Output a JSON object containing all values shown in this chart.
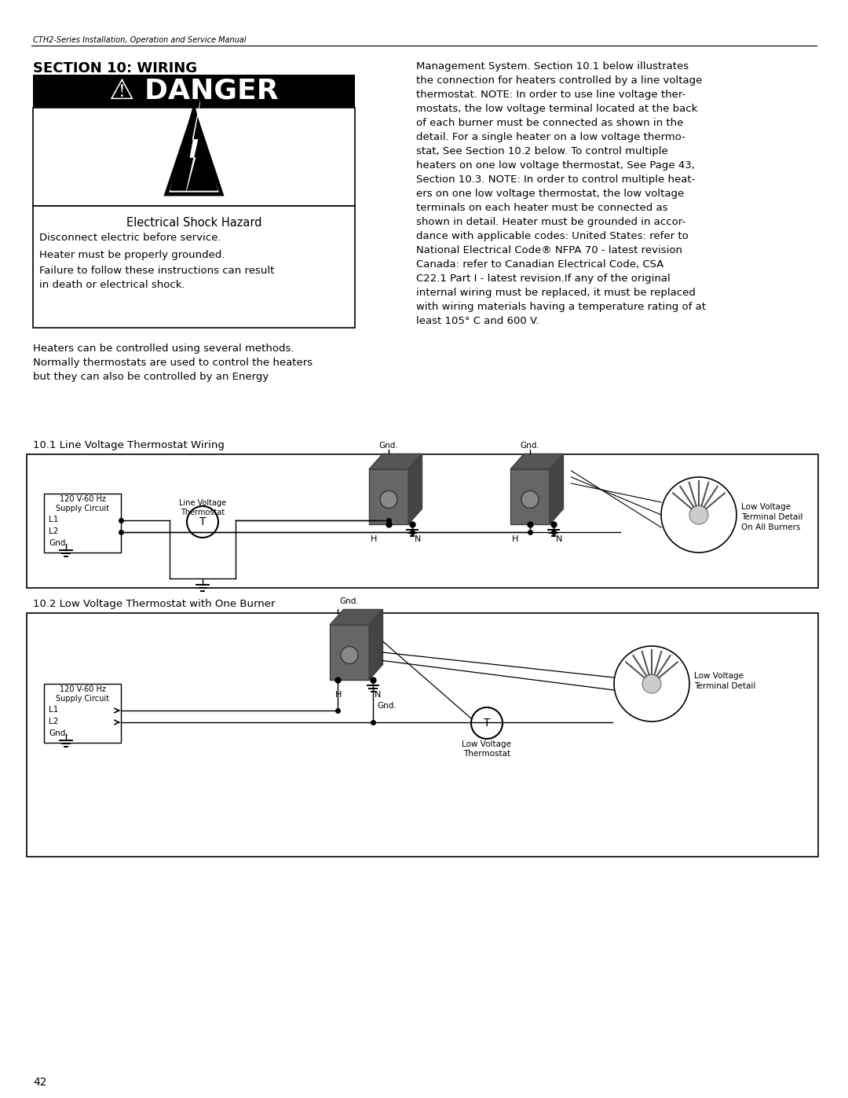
{
  "page_title": "CTH2-Series Installation, Operation and Service Manual",
  "section_title": "SECTION 10: WIRING",
  "danger_title": "⚠ DANGER",
  "danger_subtitle": "Electrical Shock Hazard",
  "danger_lines": [
    "Disconnect electric before service.",
    "Heater must be properly grounded.",
    "Failure to follow these instructions can result\nin death or electrical shock."
  ],
  "body_text_left": "Heaters can be controlled using several methods.\nNormally thermostats are used to control the heaters\nbut they can also be controlled by an Energy",
  "body_text_right": "Management System. Section 10.1 below illustrates\nthe connection for heaters controlled by a line voltage\nthermostat. NOTE: In order to use line voltage ther-\nmostats, the low voltage terminal located at the back\nof each burner must be connected as shown in the\ndetail. For a single heater on a low voltage thermo-\nstat, See Section 10.2 below. To control multiple\nheaters on one low voltage thermostat, See Page 43,\nSection 10.3. NOTE: In order to control multiple heat-\ners on one low voltage thermostat, the low voltage\nterminals on each heater must be connected as\nshown in detail. Heater must be grounded in accor-\ndance with applicable codes: United States: refer to\nNational Electrical Code® NFPA 70 - latest revision\nCanada: refer to Canadian Electrical Code, CSA\nC22.1 Part I - latest revision.If any of the original\ninternal wiring must be replaced, it must be replaced\nwith wiring materials having a temperature rating of at\nleast 105° C and 600 V.",
  "diagram1_title": "10.1 Line Voltage Thermostat Wiring",
  "diagram2_title": "10.2 Low Voltage Thermostat with One Burner",
  "page_number": "42",
  "bg_color": "#ffffff",
  "text_color": "#000000",
  "danger_bg": "#111111",
  "danger_text": "#ffffff"
}
